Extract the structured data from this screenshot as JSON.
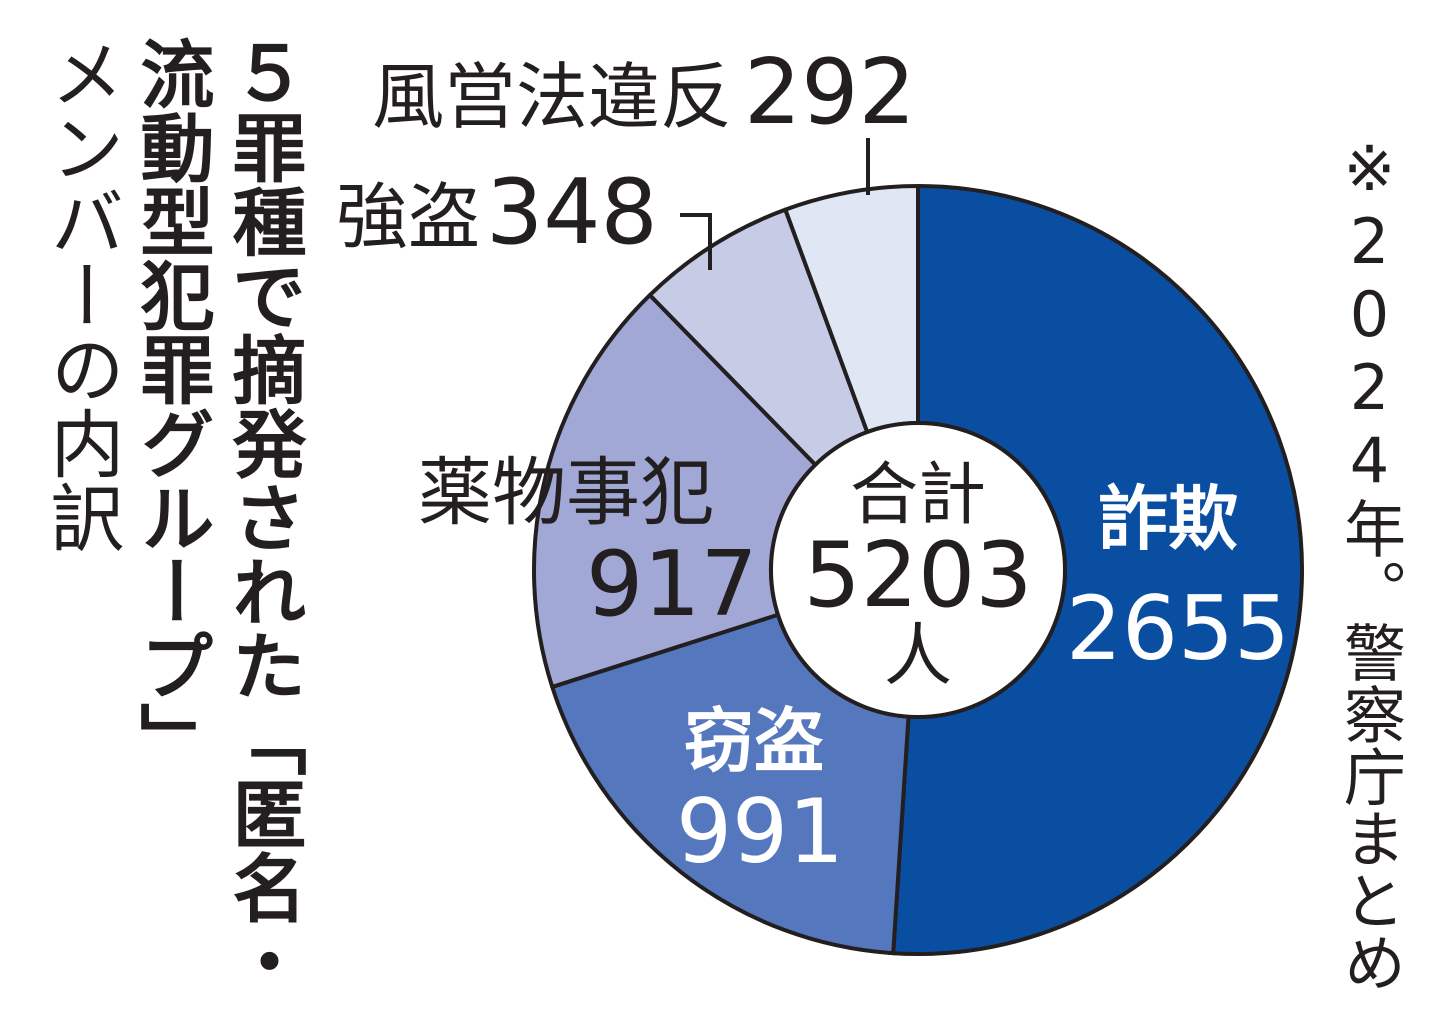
{
  "title": {
    "line1": "５罪種で摘発された「匿名・",
    "line2": "流動型犯罪グループ」",
    "line3": "メンバーの内訳"
  },
  "note": "※2024年。警察庁まとめ",
  "center": {
    "label": "合計",
    "value": "5203",
    "unit": "人"
  },
  "slices": [
    {
      "name": "詐欺",
      "value": "2655",
      "color": "#0a4ea2",
      "text_color": "#ffffff"
    },
    {
      "name": "窃盗",
      "value": "991",
      "color": "#5577bd",
      "text_color": "#ffffff"
    },
    {
      "name": "薬物事犯",
      "value": "917",
      "color": "#a2a8d5",
      "text_color": "#231f20"
    },
    {
      "name": "強盗",
      "value": "348",
      "color": "#c6cbe6",
      "text_color": "#231f20"
    },
    {
      "name": "風営法違反",
      "value": "292",
      "color": "#dfe6f4",
      "text_color": "#231f20"
    }
  ],
  "chart_data": {
    "type": "pie",
    "variant": "donut",
    "title": "５罪種で摘発された「匿名・流動型犯罪グループ」メンバーの内訳",
    "categories": [
      "詐欺",
      "窃盗",
      "薬物事犯",
      "強盗",
      "風営法違反"
    ],
    "values": [
      2655,
      991,
      917,
      348,
      292
    ],
    "total": 5203,
    "unit": "人",
    "center_label": "合計 5203 人",
    "start_angle": "12 o'clock, clockwise",
    "colors": [
      "#0a4ea2",
      "#5577bd",
      "#a2a8d5",
      "#c6cbe6",
      "#dfe6f4"
    ],
    "annotation": "※2024年。警察庁まとめ",
    "legend": "none (direct labels)"
  }
}
